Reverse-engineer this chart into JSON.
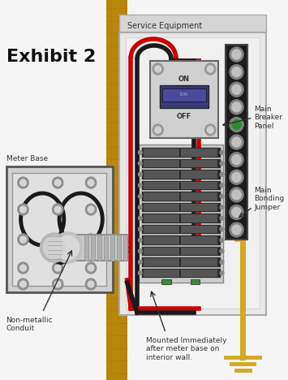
{
  "bg_color": "#f5f5f5",
  "wall_color": "#b8860b",
  "wall_grain": "#9a7000",
  "panel_color": "#e0e0e0",
  "panel_edge": "#aaaaaa",
  "panel_inner": "#ebebeb",
  "service_label": "Service Equipment",
  "exhibit_label": "Exhibit 2",
  "meter_label": "Meter Base",
  "conduit_label": "Non-metallic\nConduit",
  "mounted_label": "Mounted Immediately\nafter meter base on\ninterior wall.",
  "breaker_label": "Main\nBreaker\nPanel",
  "bonding_label": "Main\nBonding\nJumper",
  "red_wire": "#cc0000",
  "black_wire": "#1a1a1a",
  "ground_color": "#d4a820",
  "green_dot": "#2a8a2a",
  "bar_color": "#222222",
  "bar_terminal": "#888888",
  "breaker_dark": "#2a2a2a",
  "conduit_color": "#c8c8c8",
  "conduit_edge": "#909090",
  "meter_box_color": "#d0d0d0",
  "meter_box_edge": "#555555"
}
